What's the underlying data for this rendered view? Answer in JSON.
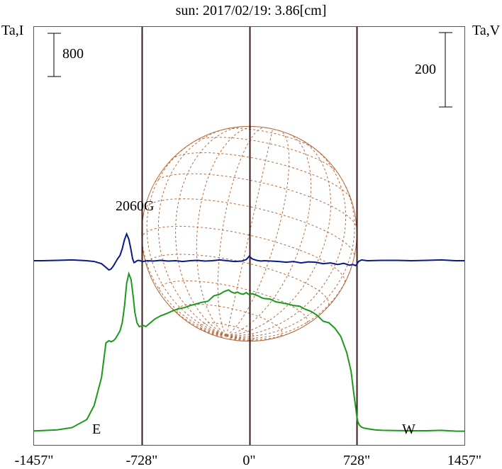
{
  "chart_data": {
    "type": "line",
    "title": "sun: 2017/02/19: 3.86[cm]",
    "left_axis_label": "Ta,I",
    "right_axis_label": "Ta,V",
    "x_ticks": [
      {
        "value": -1457,
        "label": "-1457\""
      },
      {
        "value": -728,
        "label": "-728\""
      },
      {
        "value": 0,
        "label": "0\""
      },
      {
        "value": 728,
        "label": "728\""
      },
      {
        "value": 1457,
        "label": "1457\""
      }
    ],
    "xlim": [
      -1457,
      1457
    ],
    "limb_arcsec": 728,
    "vertical_lines_arcsec": [
      -728,
      0,
      728
    ],
    "scale_bar_left": {
      "label": "800",
      "units": 800
    },
    "scale_bar_right": {
      "label": "200",
      "units": 200
    },
    "markers": {
      "east": "E",
      "west": "W"
    },
    "annotation": {
      "text": "2060G",
      "x": -575
    },
    "grid": "heliographic grid on solar disk",
    "colors": {
      "intensity": "#1a9a1a",
      "polarization": "#0a1a8c",
      "disk": "#b86a3c",
      "vlines": "#3a1a1a",
      "title": "#1a1a6a"
    },
    "series": [
      {
        "name": "Ta,I",
        "x": [
          -1457,
          -1400,
          -1300,
          -1200,
          -1100,
          -1050,
          -1000,
          -970,
          -950,
          -935,
          -920,
          -905,
          -890,
          -875,
          -860,
          -845,
          -830,
          -815,
          -800,
          -785,
          -775,
          -760,
          -745,
          -730,
          -715,
          -700,
          -670,
          -640,
          -600,
          -560,
          -520,
          -480,
          -440,
          -400,
          -360,
          -320,
          -280,
          -240,
          -200,
          -170,
          -140,
          -120,
          -100,
          -80,
          -60,
          -40,
          -20,
          0,
          20,
          40,
          60,
          80,
          100,
          140,
          180,
          220,
          260,
          300,
          340,
          380,
          420,
          460,
          500,
          540,
          580,
          620,
          660,
          690,
          705,
          720,
          728,
          735,
          745,
          760,
          780,
          800,
          850,
          900,
          1000,
          1100,
          1200,
          1300,
          1400,
          1457
        ],
        "y": [
          50,
          55,
          68,
          110,
          260,
          520,
          1040,
          1680,
          1720,
          1700,
          1720,
          1760,
          1830,
          1900,
          2050,
          2350,
          2780,
          2960,
          2850,
          2520,
          2250,
          2050,
          1980,
          1990,
          2000,
          1980,
          2050,
          2120,
          2180,
          2220,
          2270,
          2310,
          2330,
          2370,
          2400,
          2430,
          2450,
          2550,
          2580,
          2630,
          2660,
          2620,
          2600,
          2620,
          2590,
          2580,
          2610,
          2570,
          2590,
          2570,
          2550,
          2520,
          2500,
          2490,
          2440,
          2420,
          2400,
          2370,
          2360,
          2300,
          2260,
          2190,
          2080,
          2050,
          1950,
          1800,
          1500,
          1150,
          800,
          500,
          330,
          220,
          160,
          120,
          100,
          90,
          70,
          60,
          55,
          52,
          52,
          60,
          45,
          45
        ]
      },
      {
        "name": "Ta,V",
        "x": [
          -1457,
          -1400,
          -1300,
          -1200,
          -1100,
          -1050,
          -1000,
          -970,
          -950,
          -935,
          -920,
          -905,
          -890,
          -875,
          -860,
          -845,
          -830,
          -815,
          -800,
          -790,
          -780,
          -770,
          -760,
          -750,
          -740,
          -720,
          -690,
          -650,
          -600,
          -550,
          -500,
          -450,
          -400,
          -350,
          -300,
          -250,
          -200,
          -150,
          -100,
          -50,
          -20,
          0,
          20,
          50,
          80,
          100,
          150,
          200,
          250,
          300,
          350,
          400,
          450,
          500,
          550,
          600,
          640,
          680,
          700,
          720,
          728,
          740,
          760,
          800,
          900,
          1000,
          1100,
          1200,
          1300,
          1400,
          1457
        ],
        "y": [
          0,
          0,
          1,
          2,
          0,
          -2,
          -8,
          -18,
          -25,
          -22,
          -14,
          -4,
          6,
          14,
          32,
          56,
          72,
          58,
          28,
          6,
          -5,
          -3,
          0,
          1,
          0,
          -2,
          0,
          -1,
          1,
          -1,
          0,
          -2,
          0,
          1,
          -1,
          0,
          2,
          0,
          -2,
          -1,
          3,
          12,
          5,
          1,
          -1,
          0,
          -1,
          -2,
          -4,
          -2,
          -6,
          -3,
          -4,
          -8,
          -6,
          -10,
          -7,
          -12,
          -10,
          -13,
          -10,
          -2,
          2,
          0,
          1,
          1,
          0,
          1,
          2,
          0,
          0
        ]
      }
    ]
  }
}
